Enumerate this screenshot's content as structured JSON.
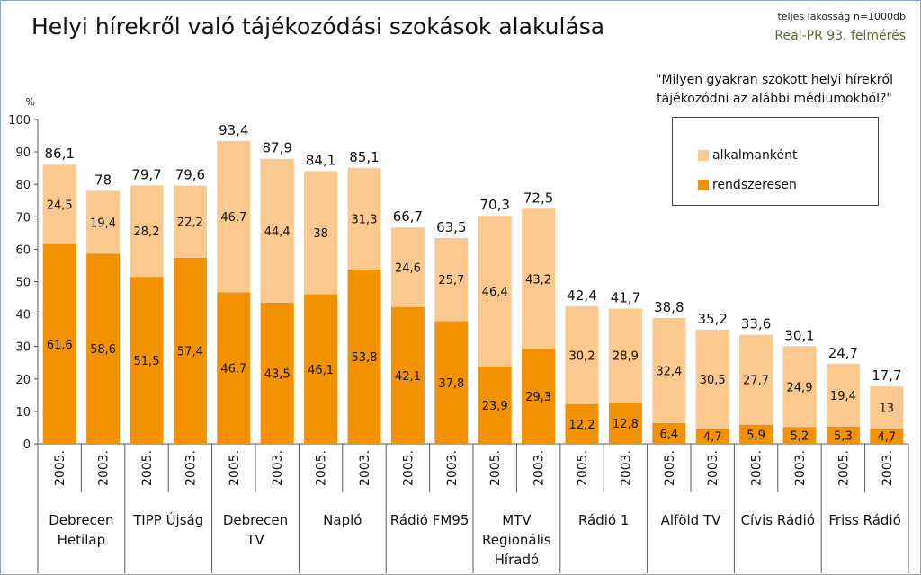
{
  "title": "Helyi hírekről való tájékozódási szokások alakulása",
  "note_population": "teljes lakosság n=1000db",
  "note_source": "Real-PR 93. felmérés",
  "question_line1": "\"Milyen gyakran szokott helyi hírekről",
  "question_line2": "tájékozódni az alábbi médiumokból?\"",
  "colors": {
    "alkalmankent": "#fbc88e",
    "rendszeresen": "#f39200",
    "grid": "#999999"
  },
  "chart_data": {
    "type": "bar",
    "stacked": true,
    "ylabel": "%",
    "ylim": [
      0,
      100
    ],
    "yticks": [
      0,
      10,
      20,
      30,
      40,
      50,
      60,
      70,
      80,
      90,
      100
    ],
    "grid": false,
    "legend_position": "top-right",
    "groups": [
      {
        "label": [
          "Debrecen",
          "Hetilap"
        ],
        "years": [
          "2005.",
          "2003."
        ]
      },
      {
        "label": [
          "TIPP Újság"
        ],
        "years": [
          "2005.",
          "2003."
        ]
      },
      {
        "label": [
          "Debrecen",
          "TV"
        ],
        "years": [
          "2005.",
          "2003."
        ]
      },
      {
        "label": [
          "Napló"
        ],
        "years": [
          "2005.",
          "2003."
        ]
      },
      {
        "label": [
          "Rádió FM95"
        ],
        "years": [
          "2005.",
          "2003."
        ]
      },
      {
        "label": [
          "MTV",
          "Regionális",
          "Híradó"
        ],
        "years": [
          "2005.",
          "2003."
        ]
      },
      {
        "label": [
          "Rádió 1"
        ],
        "years": [
          "2005.",
          "2003."
        ]
      },
      {
        "label": [
          "Alföld TV"
        ],
        "years": [
          "2005.",
          "2003."
        ]
      },
      {
        "label": [
          "Cívis Rádió"
        ],
        "years": [
          "2005.",
          "2003."
        ]
      },
      {
        "label": [
          "Friss Rádió"
        ],
        "years": [
          "2005.",
          "2003."
        ]
      }
    ],
    "series": [
      {
        "name": "rendszeresen",
        "values": [
          61.6,
          58.6,
          51.5,
          57.4,
          46.7,
          43.5,
          46.1,
          53.8,
          42.1,
          37.8,
          23.9,
          29.3,
          12.2,
          12.8,
          6.4,
          4.7,
          5.9,
          5.2,
          5.3,
          4.7
        ]
      },
      {
        "name": "alkalmanként",
        "values": [
          24.5,
          19.4,
          28.2,
          22.2,
          46.7,
          44.4,
          38,
          31.3,
          24.6,
          25.7,
          46.4,
          43.2,
          30.2,
          28.9,
          32.4,
          30.5,
          27.7,
          24.9,
          19.4,
          13
        ]
      }
    ],
    "totals": [
      "86,1",
      "78",
      "79,7",
      "79,6",
      "93,4",
      "87,9",
      "84,1",
      "85,1",
      "66,7",
      "63,5",
      "70,3",
      "72,5",
      "42,4",
      "41,7",
      "38,8",
      "35,2",
      "33,6",
      "30,1",
      "24,7",
      "17,7"
    ],
    "rendszeresen_labels": [
      "61,6",
      "58,6",
      "51,5",
      "57,4",
      "46,7",
      "43,5",
      "46,1",
      "53,8",
      "42,1",
      "37,8",
      "23,9",
      "29,3",
      "12,2",
      "12,8",
      "6,4",
      "4,7",
      "5,9",
      "5,2",
      "5,3",
      "4,7"
    ],
    "alkalmankent_labels": [
      "24,5",
      "19,4",
      "28,2",
      "22,2",
      "46,7",
      "44,4",
      "38",
      "31,3",
      "24,6",
      "25,7",
      "46,4",
      "43,2",
      "30,2",
      "28,9",
      "32,4",
      "30,5",
      "27,7",
      "24,9",
      "19,4",
      "13"
    ]
  },
  "legend": {
    "alkalmankent": "alkalmanként",
    "rendszeresen": "rendszeresen"
  }
}
